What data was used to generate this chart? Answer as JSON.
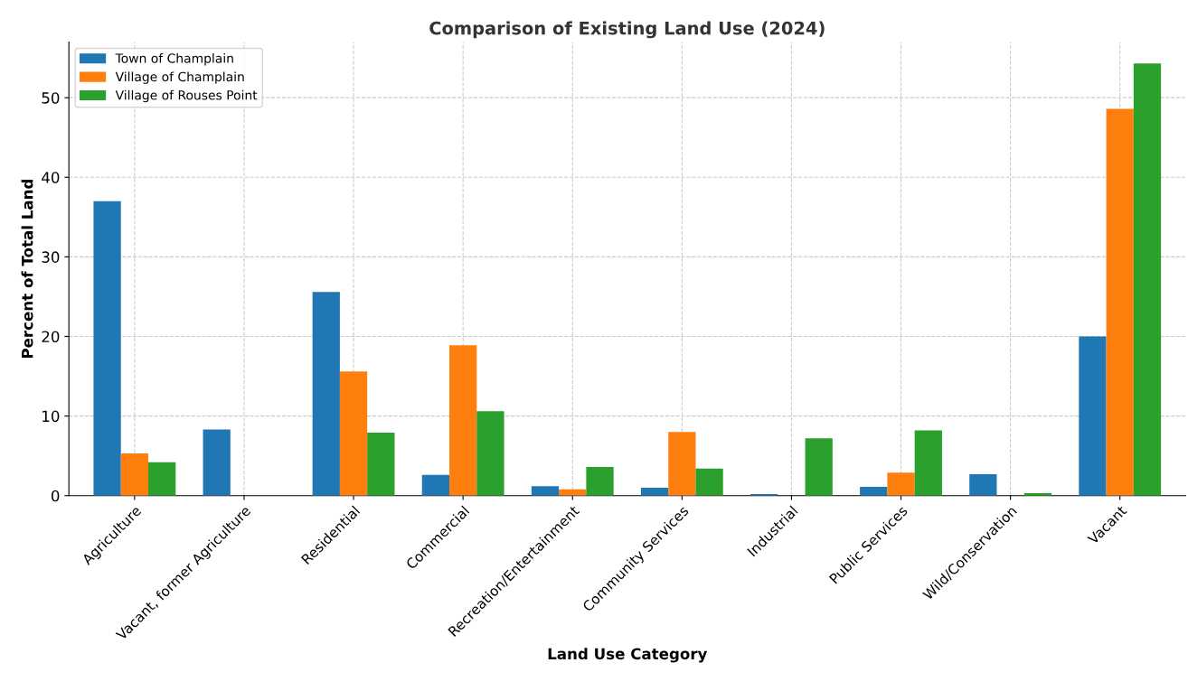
{
  "chart_data": {
    "type": "bar",
    "title": "Comparison of Existing Land Use (2024)",
    "xlabel": "Land Use Category",
    "ylabel": "Percent of Total Land",
    "categories": [
      "Agriculture",
      "Vacant, former Agriculture",
      "Residential",
      "Commercial",
      "Recreation/Entertainment",
      "Community Services",
      "Industrial",
      "Public Services",
      "Wild/Conservation",
      "Vacant"
    ],
    "series": [
      {
        "name": "Town of Champlain",
        "color": "#1f77b4",
        "values": [
          37.0,
          8.3,
          25.6,
          2.6,
          1.2,
          1.0,
          0.2,
          1.1,
          2.7,
          20.0
        ]
      },
      {
        "name": "Village of Champlain",
        "color": "#ff7f0e",
        "values": [
          5.3,
          0,
          15.6,
          18.9,
          0.8,
          8.0,
          0,
          2.9,
          0,
          48.6
        ]
      },
      {
        "name": "Village of Rouses Point",
        "color": "#2ca02c",
        "values": [
          4.2,
          0,
          7.9,
          10.6,
          3.6,
          3.4,
          7.2,
          8.2,
          0.3,
          54.3
        ]
      }
    ],
    "ylim": [
      0,
      57.0
    ],
    "yticks": [
      0,
      10,
      20,
      30,
      40,
      50
    ],
    "grid": true,
    "legend": "top left"
  }
}
